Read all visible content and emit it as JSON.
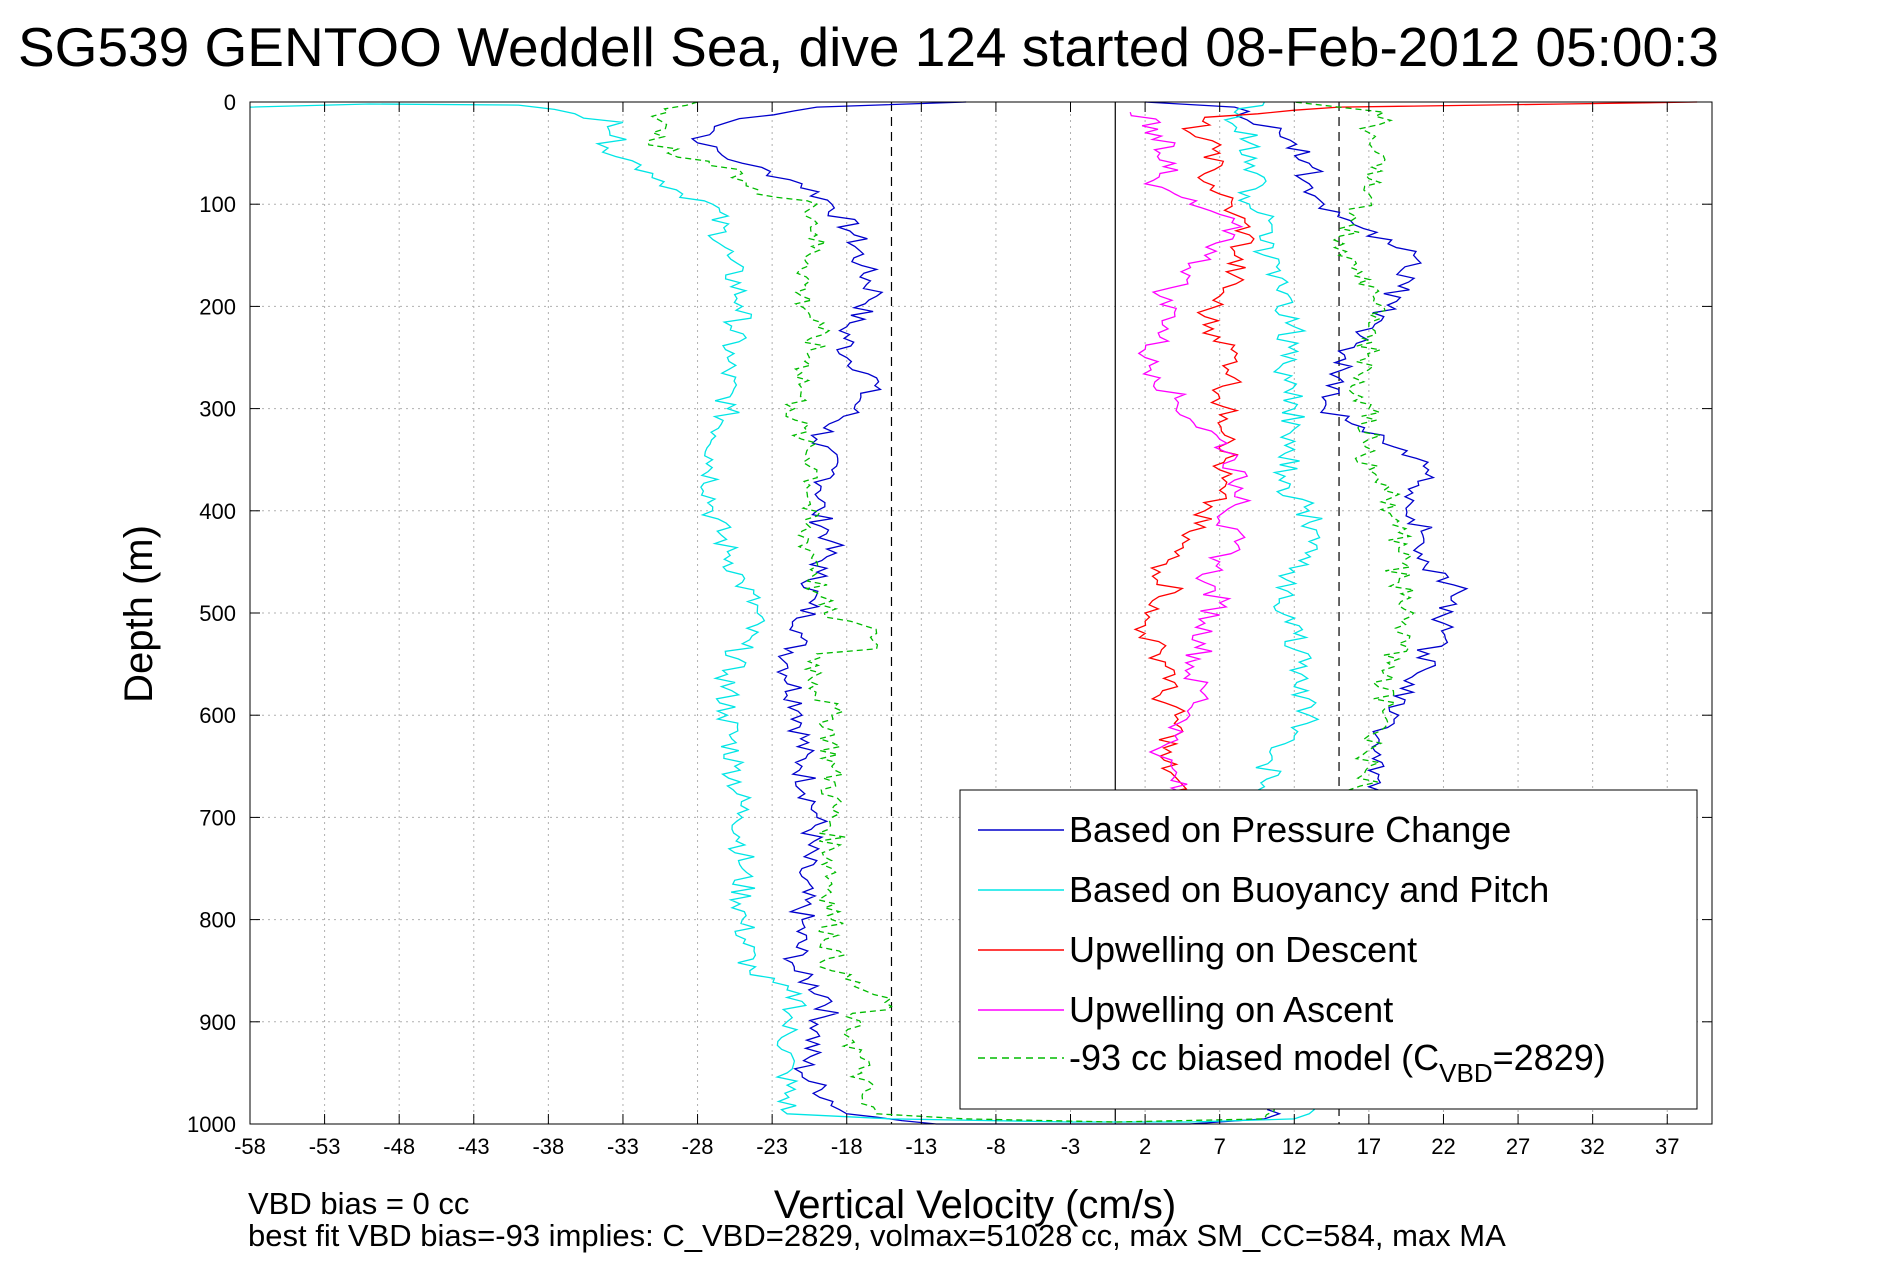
{
  "chart_data": {
    "type": "line",
    "title": "SG539 GENTOO Weddell Sea, dive 124 started 08-Feb-2012 05:00:3",
    "xlabel": "Vertical Velocity (cm/s)",
    "ylabel": "Depth (m)",
    "xlim": [
      -58,
      40
    ],
    "ylim": [
      1000,
      0
    ],
    "y_reversed": true,
    "grid": true,
    "x_ticks": [
      -58,
      -53,
      -48,
      -43,
      -38,
      -33,
      -28,
      -23,
      -18,
      -13,
      -8,
      -3,
      2,
      7,
      12,
      17,
      22,
      27,
      32,
      37
    ],
    "y_ticks": [
      0,
      100,
      200,
      300,
      400,
      500,
      600,
      700,
      800,
      900,
      1000
    ],
    "x_tick_labels": [
      "-58",
      "-53",
      "-48",
      "-43",
      "-38",
      "-33",
      "-28",
      "-23",
      "-18",
      "-13",
      "-8",
      "-3",
      "2",
      "7",
      "12",
      "17",
      "22",
      "27",
      "32",
      "37"
    ],
    "y_tick_labels": [
      "0",
      "100",
      "200",
      "300",
      "400",
      "500",
      "600",
      "700",
      "800",
      "900",
      "1000"
    ],
    "legend_position": "bottom-right",
    "reference_lines": [
      {
        "x": -15,
        "style": "dashed",
        "color": "#000000"
      },
      {
        "x": 15,
        "style": "dashed",
        "color": "#000000"
      },
      {
        "x": 0,
        "style": "solid",
        "color": "#000000"
      }
    ],
    "series": [
      {
        "name": "Based on Pressure Change",
        "color": "#0000cc",
        "style": "solid",
        "points": [
          [
            -10,
            0
          ],
          [
            -20,
            5
          ],
          [
            -26,
            20
          ],
          [
            -28,
            40
          ],
          [
            -25,
            60
          ],
          [
            -21,
            80
          ],
          [
            -19,
            100
          ],
          [
            -17.5,
            130
          ],
          [
            -17,
            160
          ],
          [
            -16,
            190
          ],
          [
            -18,
            220
          ],
          [
            -18,
            250
          ],
          [
            -16,
            270
          ],
          [
            -17.5,
            300
          ],
          [
            -20,
            330
          ],
          [
            -19,
            360
          ],
          [
            -20,
            400
          ],
          [
            -19,
            430
          ],
          [
            -20,
            460
          ],
          [
            -20.5,
            490
          ],
          [
            -21,
            520
          ],
          [
            -22,
            550
          ],
          [
            -21,
            600
          ],
          [
            -21,
            650
          ],
          [
            -20,
            700
          ],
          [
            -21,
            750
          ],
          [
            -21,
            800
          ],
          [
            -21.5,
            850
          ],
          [
            -19,
            880
          ],
          [
            -20,
            910
          ],
          [
            -21,
            950
          ],
          [
            -18,
            990
          ],
          [
            -12,
            1000
          ],
          [
            -5,
            1000
          ],
          [
            0,
            1000
          ],
          [
            5,
            1000
          ],
          [
            10,
            995
          ],
          [
            11,
            990
          ],
          [
            17,
            670
          ],
          [
            18,
            650
          ],
          [
            17.5,
            620
          ],
          [
            19,
            600
          ],
          [
            20,
            570
          ],
          [
            21,
            540
          ],
          [
            22,
            510
          ],
          [
            23,
            480
          ],
          [
            21,
            450
          ],
          [
            20.5,
            420
          ],
          [
            20,
            390
          ],
          [
            21,
            360
          ],
          [
            18,
            330
          ],
          [
            14,
            300
          ],
          [
            15,
            270
          ],
          [
            16,
            240
          ],
          [
            18,
            210
          ],
          [
            19,
            180
          ],
          [
            20,
            150
          ],
          [
            16,
            120
          ],
          [
            14,
            100
          ],
          [
            13,
            80
          ],
          [
            13,
            60
          ],
          [
            11,
            30
          ],
          [
            8,
            5
          ],
          [
            2,
            0
          ]
        ]
      },
      {
        "name": "Based on Buoyancy and Pitch",
        "color": "#00e5e5",
        "style": "solid",
        "points": [
          [
            -58,
            5
          ],
          [
            -50,
            2
          ],
          [
            -40,
            3
          ],
          [
            -33,
            20
          ],
          [
            -34,
            45
          ],
          [
            -31,
            70
          ],
          [
            -29,
            90
          ],
          [
            -27,
            100
          ],
          [
            -26,
            150
          ],
          [
            -25,
            200
          ],
          [
            -26,
            250
          ],
          [
            -26,
            300
          ],
          [
            -27,
            350
          ],
          [
            -27,
            400
          ],
          [
            -26,
            440
          ],
          [
            -25,
            470
          ],
          [
            -24,
            500
          ],
          [
            -25,
            530
          ],
          [
            -26,
            560
          ],
          [
            -26,
            600
          ],
          [
            -25.5,
            650
          ],
          [
            -25,
            700
          ],
          [
            -25,
            750
          ],
          [
            -25,
            800
          ],
          [
            -24.5,
            850
          ],
          [
            -21,
            880
          ],
          [
            -22,
            900
          ],
          [
            -22,
            950
          ],
          [
            -22,
            990
          ],
          [
            -15,
            995
          ],
          [
            -3,
            998
          ],
          [
            5,
            998
          ],
          [
            12,
            995
          ],
          [
            13,
            990
          ],
          [
            10,
            670
          ],
          [
            10.5,
            640
          ],
          [
            12,
            620
          ],
          [
            13,
            600
          ],
          [
            12.5,
            560
          ],
          [
            12,
            520
          ],
          [
            11,
            490
          ],
          [
            12,
            460
          ],
          [
            13,
            430
          ],
          [
            13,
            400
          ],
          [
            11,
            370
          ],
          [
            12,
            340
          ],
          [
            12,
            320
          ],
          [
            12,
            300
          ],
          [
            11,
            260
          ],
          [
            12,
            220
          ],
          [
            11,
            180
          ],
          [
            10,
            150
          ],
          [
            10.5,
            120
          ],
          [
            9,
            100
          ],
          [
            9.5,
            70
          ],
          [
            9,
            40
          ],
          [
            8,
            10
          ],
          [
            10,
            0
          ]
        ]
      },
      {
        "name": "Upwelling on Descent",
        "color": "#ff0000",
        "style": "solid",
        "points": [
          [
            39,
            0
          ],
          [
            30,
            2
          ],
          [
            20,
            4
          ],
          [
            15,
            5
          ],
          [
            12,
            8
          ],
          [
            6,
            15
          ],
          [
            5,
            30
          ],
          [
            7,
            50
          ],
          [
            6,
            70
          ],
          [
            7,
            90
          ],
          [
            8,
            110
          ],
          [
            9,
            130
          ],
          [
            8,
            150
          ],
          [
            8,
            170
          ],
          [
            7,
            190
          ],
          [
            6,
            210
          ],
          [
            7,
            230
          ],
          [
            8,
            250
          ],
          [
            8,
            270
          ],
          [
            7,
            290
          ],
          [
            7.5,
            310
          ],
          [
            8,
            330
          ],
          [
            7,
            360
          ],
          [
            7,
            380
          ],
          [
            6,
            400
          ],
          [
            5,
            420
          ],
          [
            4,
            440
          ],
          [
            3,
            460
          ],
          [
            4,
            480
          ],
          [
            2,
            500
          ],
          [
            2,
            520
          ],
          [
            3,
            540
          ],
          [
            4,
            560
          ],
          [
            3,
            580
          ],
          [
            4,
            600
          ],
          [
            4,
            620
          ],
          [
            3,
            640
          ],
          [
            4,
            660
          ],
          [
            4,
            680
          ],
          [
            4,
            700
          ]
        ]
      },
      {
        "name": "Upwelling on Ascent",
        "color": "#ff00ff",
        "style": "solid",
        "points": [
          [
            1,
            10
          ],
          [
            3,
            20
          ],
          [
            2,
            30
          ],
          [
            4,
            40
          ],
          [
            3,
            50
          ],
          [
            4,
            60
          ],
          [
            3,
            70
          ],
          [
            2,
            80
          ],
          [
            4,
            90
          ],
          [
            5,
            100
          ],
          [
            7,
            110
          ],
          [
            8,
            130
          ],
          [
            6,
            150
          ],
          [
            5,
            170
          ],
          [
            3,
            190
          ],
          [
            4,
            210
          ],
          [
            3,
            230
          ],
          [
            2,
            250
          ],
          [
            3,
            270
          ],
          [
            4,
            290
          ],
          [
            5,
            310
          ],
          [
            7,
            330
          ],
          [
            8,
            350
          ],
          [
            8,
            370
          ],
          [
            9,
            390
          ],
          [
            7,
            410
          ],
          [
            8,
            430
          ],
          [
            7,
            450
          ],
          [
            6,
            470
          ],
          [
            7,
            490
          ],
          [
            6,
            510
          ],
          [
            6,
            530
          ],
          [
            5,
            560
          ],
          [
            6,
            580
          ],
          [
            5,
            600
          ],
          [
            4,
            620
          ],
          [
            3,
            640
          ],
          [
            4,
            660
          ],
          [
            4,
            690
          ]
        ]
      },
      {
        "name": "-93 cc biased model (C",
        "color": "#00bb00",
        "style": "dashed",
        "points": [
          [
            -28,
            0
          ],
          [
            -30,
            10
          ],
          [
            -31,
            30
          ],
          [
            -30,
            50
          ],
          [
            -25,
            70
          ],
          [
            -24,
            90
          ],
          [
            -20,
            100
          ],
          [
            -20,
            130
          ],
          [
            -20.5,
            160
          ],
          [
            -21,
            190
          ],
          [
            -20,
            220
          ],
          [
            -20.5,
            250
          ],
          [
            -21,
            280
          ],
          [
            -21.5,
            300
          ],
          [
            -21,
            330
          ],
          [
            -20,
            360
          ],
          [
            -20.5,
            390
          ],
          [
            -21,
            420
          ],
          [
            -20,
            450
          ],
          [
            -20,
            480
          ],
          [
            -19.5,
            500
          ],
          [
            -16,
            520
          ],
          [
            -16,
            535
          ],
          [
            -20,
            540
          ],
          [
            -20,
            570
          ],
          [
            -19,
            600
          ],
          [
            -19,
            650
          ],
          [
            -19,
            700
          ],
          [
            -19,
            750
          ],
          [
            -19,
            800
          ],
          [
            -19,
            850
          ],
          [
            -15,
            885
          ],
          [
            -18,
            895
          ],
          [
            -17.5,
            920
          ],
          [
            -17,
            950
          ],
          [
            -17,
            980
          ],
          [
            -16,
            990
          ],
          [
            -10,
            995
          ],
          [
            0,
            998
          ],
          [
            10,
            995
          ],
          [
            16,
            700
          ],
          [
            17,
            650
          ],
          [
            17,
            620
          ],
          [
            18,
            600
          ],
          [
            18,
            560
          ],
          [
            19,
            530
          ],
          [
            20,
            500
          ],
          [
            19,
            470
          ],
          [
            19,
            440
          ],
          [
            19,
            410
          ],
          [
            18,
            380
          ],
          [
            17,
            360
          ],
          [
            17,
            330
          ],
          [
            17,
            300
          ],
          [
            16,
            270
          ],
          [
            17,
            250
          ],
          [
            17,
            220
          ],
          [
            18,
            200
          ],
          [
            16,
            170
          ],
          [
            15,
            150
          ],
          [
            16,
            120
          ],
          [
            17,
            90
          ],
          [
            18,
            60
          ],
          [
            17,
            30
          ],
          [
            18,
            10
          ],
          [
            15,
            5
          ],
          [
            12,
            0
          ]
        ]
      }
    ],
    "legend_entries": [
      {
        "label": "Based on Pressure Change",
        "color": "#0000cc",
        "style": "solid"
      },
      {
        "label": "Based on Buoyancy and Pitch",
        "color": "#00e5e5",
        "style": "solid"
      },
      {
        "label": "Upwelling on Descent",
        "color": "#ff0000",
        "style": "solid"
      },
      {
        "label": "Upwelling on Ascent",
        "color": "#ff00ff",
        "style": "solid"
      },
      {
        "label": "-93 cc biased model (C",
        "sub": "VBD",
        "suffix": "=2829)",
        "color": "#00bb00",
        "style": "dashed"
      }
    ]
  },
  "footer": {
    "line1": "VBD bias = 0 cc",
    "line2": "best fit VBD bias=-93 implies: C_VBD=2829, volmax=51028 cc, max SM_CC=584, max MA"
  }
}
